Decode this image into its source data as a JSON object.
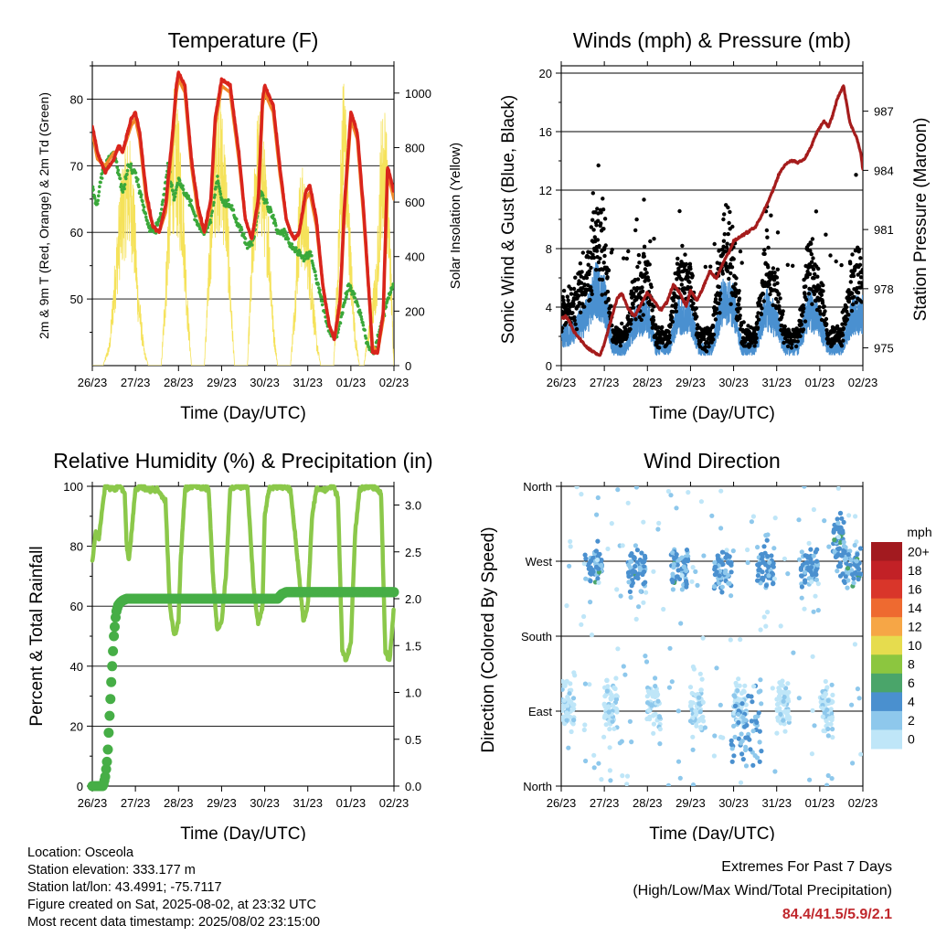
{
  "colors": {
    "temp2m": "#d9241c",
    "temp9m": "#f08a2a",
    "dewpoint": "#3aa83a",
    "solar": "#f5e25a",
    "wind": "#4a90d0",
    "gust": "#000000",
    "pressure": "#a51c1c",
    "rh": "#8bc84a",
    "precip": "#46ae46",
    "extremes": "#c0282d"
  },
  "chart_data": [
    {
      "id": "temperature",
      "type": "line",
      "title": "Temperature (F)",
      "xlabel": "Time (Day/UTC)",
      "ylabel_left": "2m & 9m T (Red, Orange) & 2m Td (Green)",
      "ylabel_right": "Solar Insolation (Yellow)",
      "x_ticks": [
        "26/23",
        "27/23",
        "28/23",
        "29/23",
        "30/23",
        "31/23",
        "01/23",
        "02/23"
      ],
      "xlim": [
        0,
        7
      ],
      "ylim_left": [
        40,
        85
      ],
      "yticks_left": [
        50,
        60,
        70,
        80
      ],
      "ylim_right": [
        0,
        1100
      ],
      "yticks_right": [
        0,
        200,
        400,
        600,
        800,
        1000
      ],
      "grid": "horizontal",
      "series": [
        {
          "key": "temp2m",
          "x": [
            0,
            0.12,
            0.3,
            0.5,
            0.55,
            0.62,
            0.7,
            0.9,
            1.0,
            1.1,
            1.25,
            1.4,
            1.55,
            1.7,
            1.85,
            1.95,
            2.0,
            2.15,
            2.3,
            2.45,
            2.6,
            2.75,
            2.85,
            3.0,
            3.2,
            3.4,
            3.55,
            3.7,
            3.85,
            3.95,
            4.0,
            4.2,
            4.35,
            4.5,
            4.6,
            4.7,
            4.8,
            4.95,
            5.05,
            5.2,
            5.35,
            5.5,
            5.62,
            5.75,
            5.85,
            6.0,
            6.15,
            6.3,
            6.45,
            6.5,
            6.62,
            6.75,
            6.85,
            7.0
          ],
          "values": [
            76,
            72,
            69,
            71,
            72,
            73,
            72,
            77,
            78,
            75,
            66,
            61,
            60,
            64,
            74,
            82,
            84,
            82,
            71,
            64,
            60,
            65,
            77,
            83,
            82,
            72,
            62,
            59,
            65,
            80,
            82,
            79,
            70,
            62,
            60,
            59,
            60,
            66,
            67,
            62,
            52,
            46,
            44,
            50,
            64,
            78,
            75,
            63,
            48,
            42,
            42,
            48,
            70,
            66
          ]
        },
        {
          "key": "temp9m",
          "x": [
            0,
            0.12,
            0.3,
            0.5,
            0.55,
            0.62,
            0.7,
            0.9,
            1.0,
            1.1,
            1.25,
            1.4,
            1.55,
            1.7,
            1.85,
            1.95,
            2.0,
            2.15,
            2.3,
            2.45,
            2.6,
            2.75,
            2.85,
            3.0,
            3.2,
            3.4,
            3.55,
            3.7,
            3.85,
            3.95,
            4.0,
            4.2,
            4.35,
            4.5,
            4.6,
            4.7,
            4.8,
            4.95,
            5.05,
            5.2,
            5.35,
            5.5,
            5.62,
            5.75,
            5.85,
            6.0,
            6.15,
            6.3,
            6.45,
            6.5,
            6.62,
            6.75,
            6.85,
            7.0
          ],
          "values": [
            75,
            71,
            70,
            72,
            72,
            73,
            72,
            76,
            77,
            74,
            65,
            61,
            60,
            63,
            73,
            81,
            83,
            81,
            70,
            63,
            60,
            64,
            76,
            82,
            81,
            71,
            62,
            59,
            64,
            79,
            81,
            78,
            69,
            62,
            60,
            59,
            60,
            65,
            66,
            61,
            52,
            46,
            44,
            49,
            63,
            77,
            74,
            62,
            48,
            43,
            42,
            47,
            69,
            65
          ]
        },
        {
          "key": "dewpoint",
          "x": [
            0,
            0.1,
            0.2,
            0.35,
            0.5,
            0.7,
            0.85,
            1.0,
            1.15,
            1.3,
            1.45,
            1.6,
            1.75,
            1.9,
            2.0,
            2.15,
            2.3,
            2.45,
            2.6,
            2.75,
            2.9,
            3.0,
            3.2,
            3.4,
            3.6,
            3.75,
            3.9,
            4.0,
            4.15,
            4.3,
            4.45,
            4.6,
            4.75,
            4.9,
            5.05,
            5.2,
            5.35,
            5.5,
            5.65,
            5.8,
            5.95,
            6.1,
            6.25,
            6.4,
            6.55,
            6.7,
            6.85,
            7.0
          ],
          "values": [
            67,
            64,
            68,
            71,
            72,
            66,
            70,
            69,
            65,
            61,
            60,
            63,
            70,
            65,
            68,
            66,
            64,
            61,
            60,
            62,
            68,
            65,
            64,
            61,
            58,
            59,
            66,
            65,
            63,
            60,
            60,
            58,
            57,
            56,
            57,
            53,
            49,
            45,
            44,
            48,
            52,
            50,
            47,
            43,
            42,
            46,
            50,
            52
          ]
        },
        {
          "key": "solar",
          "x": [
            0,
            0.05,
            0.25,
            0.4,
            0.55,
            0.65,
            0.75,
            0.85,
            0.95,
            1.05,
            1.2,
            1.3,
            1.6,
            1.7,
            1.8,
            1.9,
            2.0,
            2.1,
            2.2,
            2.3,
            2.6,
            2.7,
            2.8,
            2.9,
            3.0,
            3.1,
            3.2,
            3.3,
            3.6,
            3.7,
            3.8,
            3.9,
            4.0,
            4.1,
            4.2,
            4.3,
            4.6,
            4.7,
            4.8,
            4.9,
            5.0,
            5.1,
            5.2,
            5.3,
            5.6,
            5.7,
            5.8,
            5.85,
            5.9,
            6.0,
            6.1,
            6.2,
            6.3,
            6.6,
            6.7,
            6.8,
            6.9,
            7.0
          ],
          "values": [
            0,
            0,
            0,
            80,
            400,
            600,
            700,
            750,
            650,
            300,
            60,
            0,
            0,
            300,
            700,
            900,
            800,
            650,
            250,
            0,
            0,
            350,
            750,
            900,
            850,
            700,
            300,
            0,
            0,
            400,
            800,
            850,
            700,
            500,
            150,
            0,
            0,
            250,
            600,
            650,
            500,
            300,
            100,
            0,
            0,
            400,
            900,
            1000,
            750,
            400,
            120,
            0,
            0,
            350,
            800,
            850,
            500,
            0
          ]
        }
      ]
    },
    {
      "id": "winds",
      "type": "scatter",
      "title": "Winds (mph) & Pressure (mb)",
      "xlabel": "Time (Day/UTC)",
      "ylabel_left": "Sonic Wind & Gust (Blue, Black)",
      "ylabel_right": "Station Pressure (Maroon)",
      "x_ticks": [
        "26/23",
        "27/23",
        "28/23",
        "29/23",
        "30/23",
        "31/23",
        "01/23",
        "02/23"
      ],
      "xlim": [
        0,
        7
      ],
      "ylim_left": [
        0,
        20.5
      ],
      "yticks_left": [
        0,
        4,
        8,
        12,
        16,
        20
      ],
      "ylim_right": [
        974.1,
        989.3
      ],
      "yticks_right": [
        975,
        978,
        981,
        984,
        987
      ],
      "grid": "horizontal",
      "series": [
        {
          "key": "pressure",
          "x": [
            0,
            0.1,
            0.2,
            0.3,
            0.45,
            0.6,
            0.75,
            0.9,
            1.0,
            1.1,
            1.3,
            1.4,
            1.55,
            1.7,
            1.85,
            2.0,
            2.15,
            2.3,
            2.45,
            2.6,
            2.75,
            2.9,
            3.0,
            3.15,
            3.3,
            3.45,
            3.6,
            3.75,
            3.9,
            4.0,
            4.2,
            4.35,
            4.5,
            4.65,
            4.8,
            4.95,
            5.05,
            5.2,
            5.35,
            5.5,
            5.65,
            5.8,
            5.95,
            6.1,
            6.2,
            6.3,
            6.4,
            6.55,
            6.7,
            6.85,
            6.95,
            7.0
          ],
          "values": [
            976.5,
            976.6,
            976.3,
            975.8,
            975.4,
            975.0,
            974.8,
            974.6,
            975.2,
            976.0,
            977.5,
            977.8,
            977.0,
            976.6,
            977.2,
            977.8,
            977.4,
            976.9,
            977.3,
            978.2,
            977.8,
            977.1,
            977.9,
            977.4,
            978.1,
            978.9,
            978.5,
            979.3,
            979.9,
            980.4,
            980.7,
            980.9,
            981.1,
            981.7,
            982.4,
            983.2,
            983.8,
            984.3,
            984.5,
            984.4,
            984.6,
            985.2,
            986.0,
            986.5,
            986.2,
            986.8,
            987.6,
            988.3,
            986.4,
            985.7,
            984.9,
            984.0
          ]
        }
      ]
    },
    {
      "id": "humidity",
      "type": "line",
      "title": "Relative Humidity (%) & Precipitation (in)",
      "xlabel": "Time (Day/UTC)",
      "ylabel_left": "Percent & Total Rainfall",
      "x_ticks": [
        "26/23",
        "27/23",
        "28/23",
        "29/23",
        "30/23",
        "31/23",
        "01/23",
        "02/23"
      ],
      "xlim": [
        0,
        7
      ],
      "ylim_left": [
        0,
        100
      ],
      "yticks_left": [
        0,
        20,
        40,
        60,
        80,
        100
      ],
      "ylim_right": [
        0,
        3.2
      ],
      "yticks_right": [
        "0.0",
        "0.5",
        "1.0",
        "1.5",
        "2.0",
        "2.5",
        "3.0"
      ],
      "grid": "horizontal",
      "series": [
        {
          "key": "rh",
          "x": [
            0,
            0.08,
            0.15,
            0.25,
            0.3,
            0.35,
            0.5,
            0.65,
            0.75,
            0.8,
            0.85,
            1.0,
            1.1,
            1.15,
            1.25,
            1.5,
            1.7,
            1.8,
            1.9,
            1.95,
            2.0,
            2.05,
            2.15,
            2.3,
            2.5,
            2.7,
            2.8,
            2.9,
            3.0,
            3.1,
            3.2,
            3.35,
            3.6,
            3.75,
            3.85,
            3.95,
            4.0,
            4.1,
            4.2,
            4.35,
            4.6,
            4.8,
            4.9,
            5.0,
            5.1,
            5.2,
            5.4,
            5.6,
            5.7,
            5.8,
            5.9,
            6.0,
            6.1,
            6.2,
            6.35,
            6.5,
            6.7,
            6.8,
            6.9,
            7.0
          ],
          "values": [
            75,
            85,
            82,
            95,
            100,
            100,
            99,
            100,
            98,
            80,
            75,
            99,
            100,
            100,
            99,
            99,
            95,
            60,
            50,
            52,
            55,
            75,
            99,
            100,
            100,
            99,
            70,
            52,
            55,
            70,
            99,
            100,
            100,
            65,
            54,
            60,
            90,
            99,
            100,
            100,
            99,
            70,
            55,
            60,
            90,
            99,
            99,
            100,
            96,
            45,
            42,
            48,
            85,
            99,
            100,
            100,
            98,
            45,
            42,
            60
          ]
        },
        {
          "key": "precip",
          "x": [
            0,
            0.25,
            0.3,
            0.35,
            0.4,
            0.45,
            0.5,
            0.55,
            0.6,
            0.65,
            0.7,
            0.8,
            1.0,
            2.0,
            3.0,
            4.0,
            4.3,
            4.4,
            4.5,
            5.0,
            6.0,
            7.0
          ],
          "values": [
            0,
            0,
            0.1,
            0.3,
            0.75,
            1.2,
            1.6,
            1.85,
            1.93,
            1.96,
            1.98,
            2.0,
            2.0,
            2.0,
            2.0,
            2.0,
            2.0,
            2.05,
            2.07,
            2.07,
            2.07,
            2.07
          ]
        }
      ]
    },
    {
      "id": "direction",
      "type": "scatter",
      "title": "Wind Direction",
      "xlabel": "Time (Day/UTC)",
      "ylabel_left": "Direction (Colored By Speed)",
      "x_ticks": [
        "26/23",
        "27/23",
        "28/23",
        "29/23",
        "30/23",
        "31/23",
        "01/23",
        "02/23"
      ],
      "xlim": [
        0,
        7
      ],
      "ylim_left": [
        0,
        360
      ],
      "y_tick_labels": [
        "North",
        "East",
        "South",
        "West",
        "North"
      ],
      "y_tick_values": [
        0,
        90,
        180,
        270,
        360
      ],
      "grid": "horizontal",
      "colorbar": {
        "title": "mph",
        "labels": [
          "0",
          "2",
          "4",
          "6",
          "8",
          "10",
          "12",
          "14",
          "16",
          "18",
          "20+"
        ],
        "colors": [
          "#bfe6f8",
          "#8ec8ec",
          "#4a90cf",
          "#4aa56a",
          "#8cc63f",
          "#e6dc4e",
          "#f6a646",
          "#ee6a30",
          "#d9362a",
          "#c22126",
          "#a21a1f"
        ]
      }
    }
  ],
  "info": {
    "location": "Location: Osceola",
    "elevation": "Station elevation: 333.177 m",
    "latlon": "Station lat/lon: 43.4991; -75.7117",
    "created": "Figure created on Sat, 2025-08-02, at 23:32 UTC",
    "recent": "Most recent data timestamp: 2025/08/02 23:15:00"
  },
  "extremes": {
    "title": "Extremes For Past 7 Days",
    "subtitle": "(High/Low/Max Wind/Total Precipitation)",
    "values": "84.4/41.5/5.9/2.1"
  }
}
